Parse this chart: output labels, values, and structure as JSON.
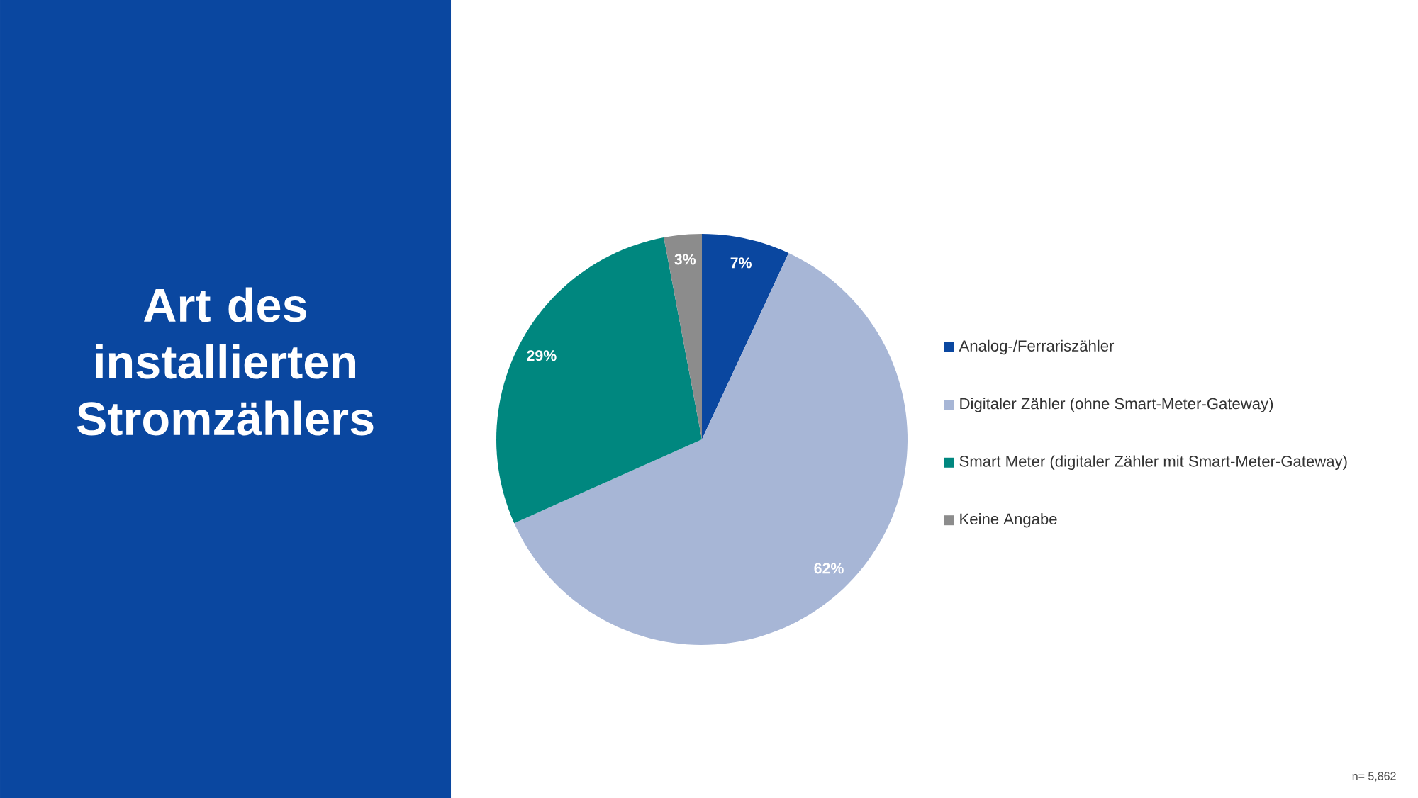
{
  "chart_data": {
    "type": "pie",
    "title": "Art des installierten Stromzählers",
    "categories": [
      "Analog-/Ferrariszähler",
      "Digitaler Zähler (ohne Smart-Meter-Gateway)",
      "Smart Meter (digitaler Zähler mit Smart-Meter-Gateway)",
      "Keine Angabe"
    ],
    "values": [
      7,
      62,
      29,
      3
    ],
    "colors": [
      "#0a47a0",
      "#a7b6d6",
      "#00877f",
      "#8c8c8c"
    ],
    "value_labels": [
      "7%",
      "62%",
      "29%",
      "3%"
    ],
    "legend": "right",
    "annotations": [
      "n= 5,862"
    ]
  }
}
